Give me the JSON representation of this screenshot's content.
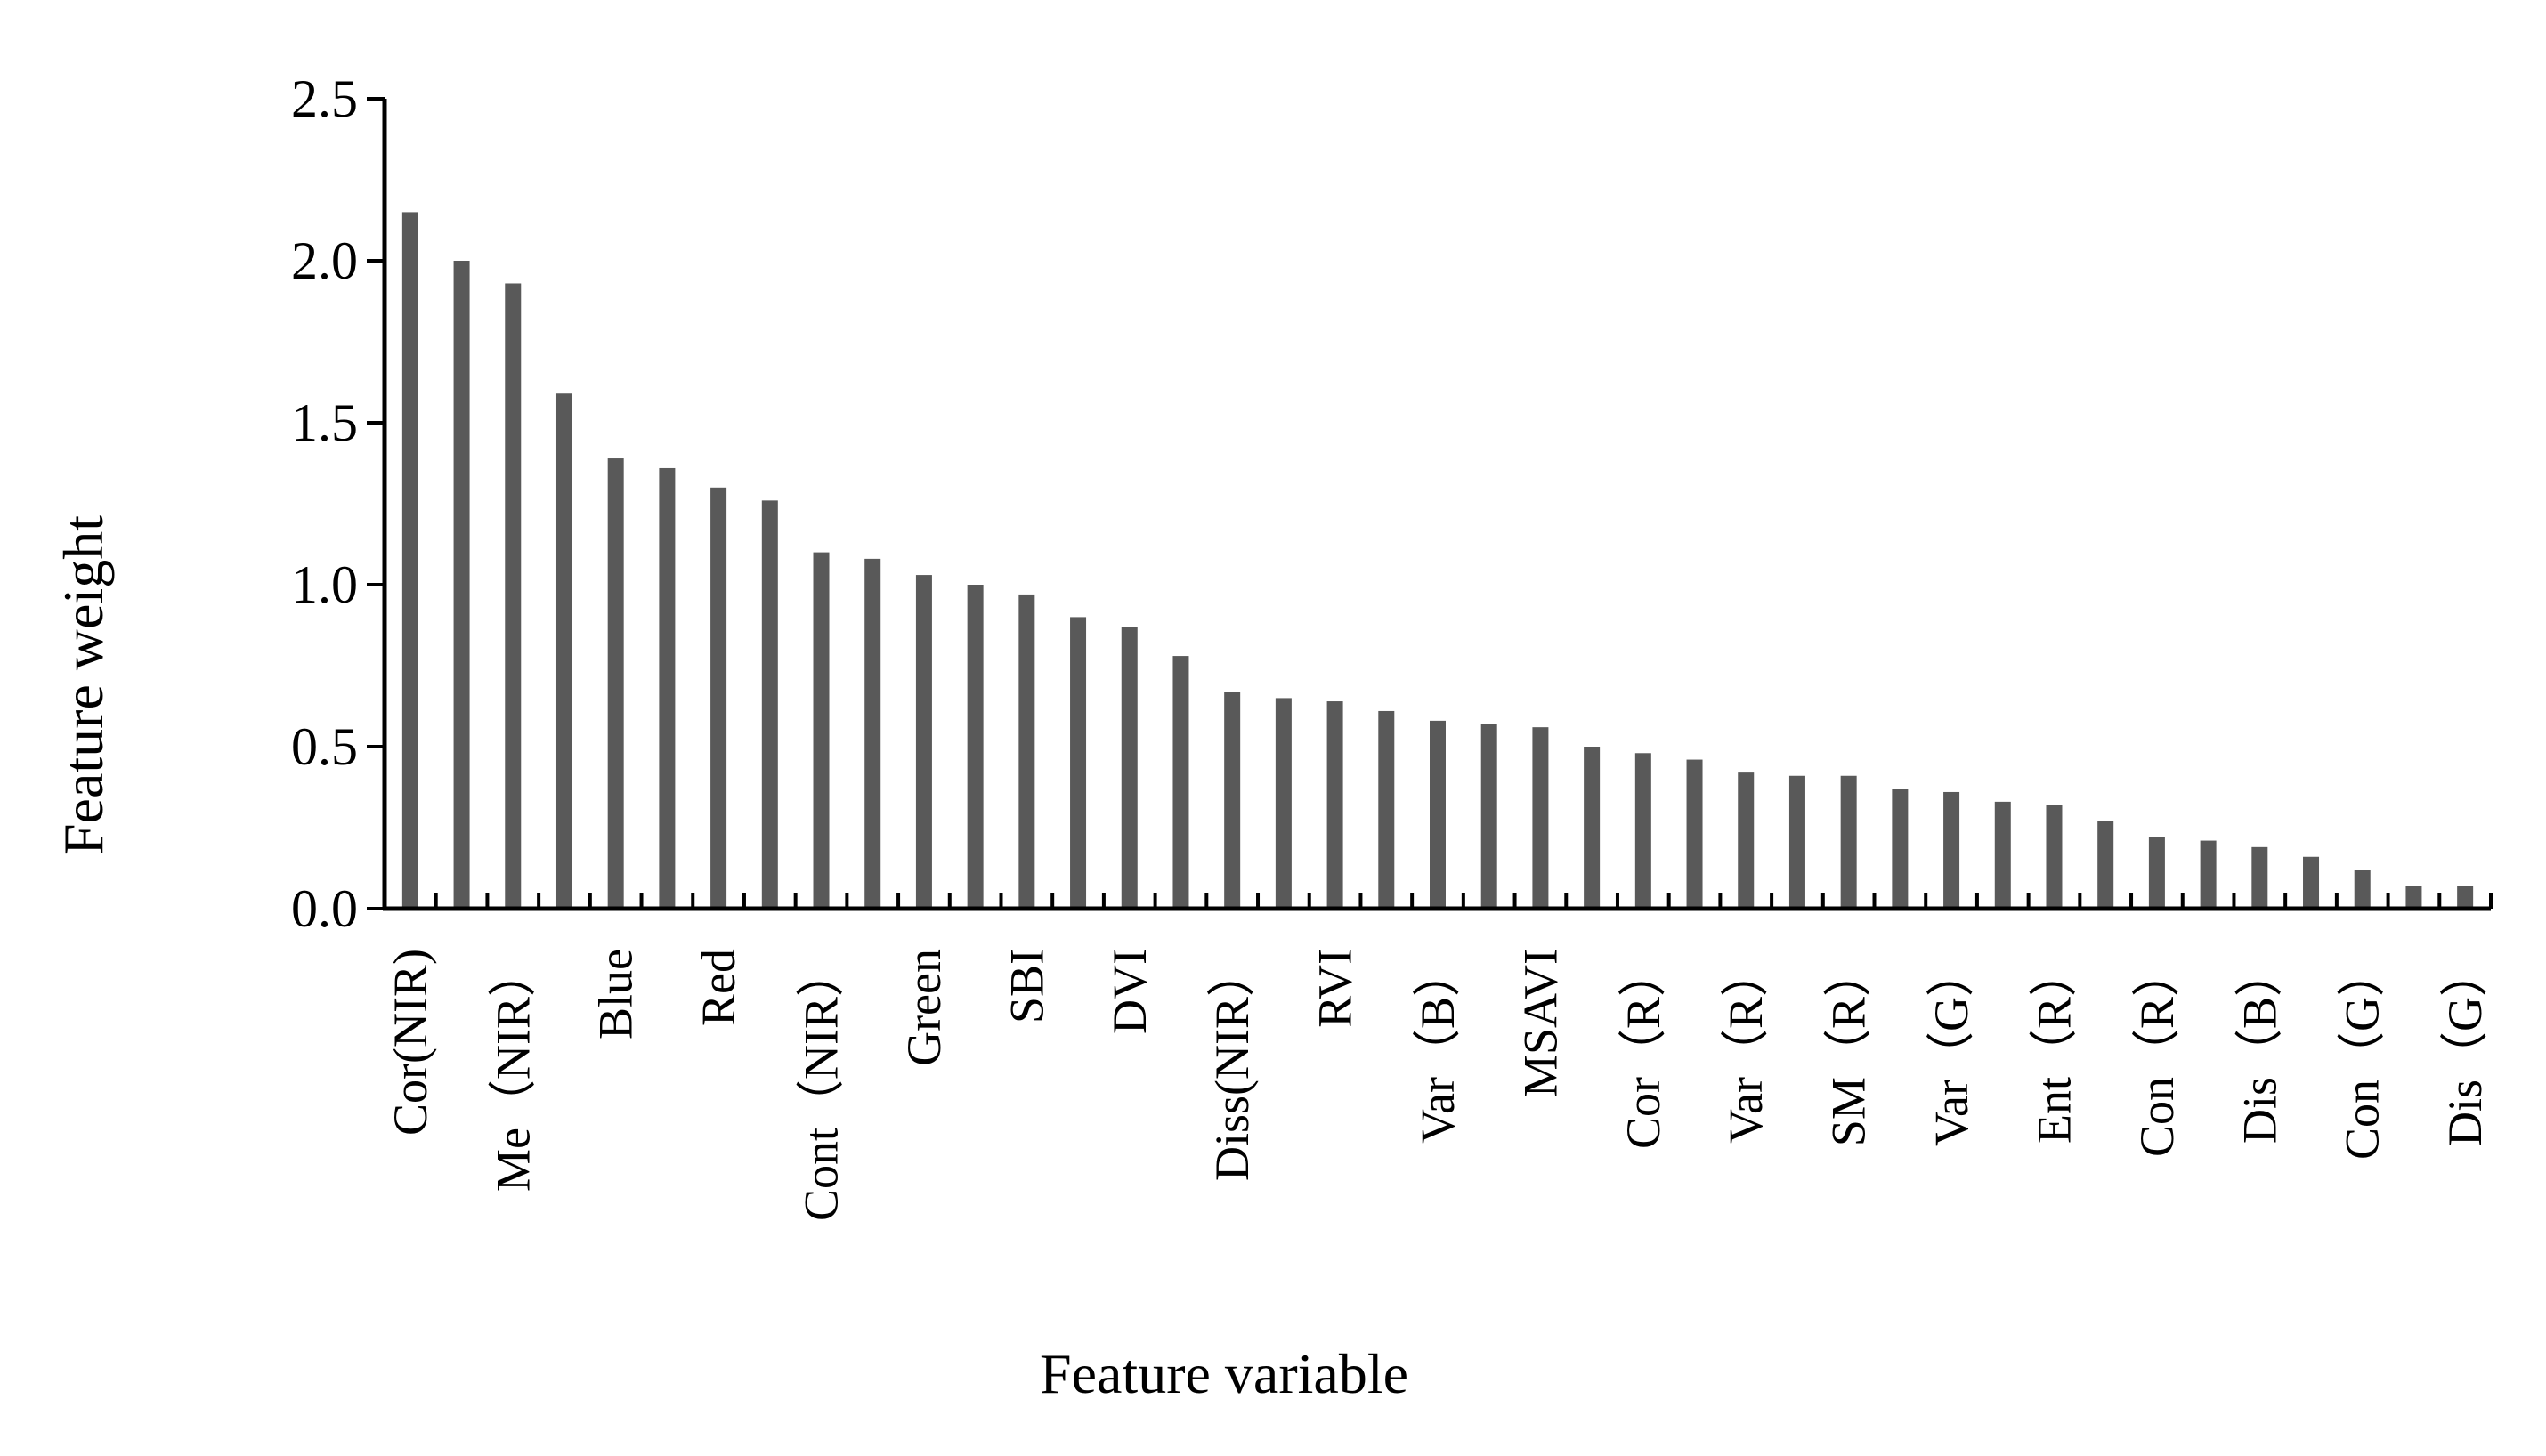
{
  "chart_data": {
    "type": "bar",
    "title": "",
    "xlabel": "Feature variable",
    "ylabel": "Feature weight",
    "ylim": [
      0,
      2.5
    ],
    "yticks": [
      "0.0",
      "0.5",
      "1.0",
      "1.5",
      "2.0",
      "2.5"
    ],
    "bar_color": "#595959",
    "categories": [
      "Cor(NIR)",
      "",
      "Me（NIR）",
      "",
      "Blue",
      "",
      "Red",
      "",
      "Cont（NIR）",
      "",
      "Green",
      "",
      "SBI",
      "",
      "DVI",
      "",
      "Diss(NIR）",
      "",
      "RVI",
      "",
      "Var（B）",
      "",
      "MSAVI",
      "",
      "Cor（R）",
      "",
      "Var（R）",
      "",
      "SM（R）",
      "",
      "Var（G）",
      "",
      "Ent（R）",
      "",
      "Con（R）",
      "",
      "Dis（B）",
      "",
      "Con（G）",
      "",
      "Dis（G）"
    ],
    "values": [
      2.15,
      2.0,
      1.93,
      1.59,
      1.39,
      1.36,
      1.3,
      1.26,
      1.1,
      1.08,
      1.03,
      1.0,
      0.97,
      0.9,
      0.87,
      0.78,
      0.67,
      0.65,
      0.64,
      0.61,
      0.58,
      0.57,
      0.56,
      0.5,
      0.48,
      0.46,
      0.42,
      0.41,
      0.41,
      0.37,
      0.36,
      0.33,
      0.32,
      0.27,
      0.22,
      0.21,
      0.19,
      0.16,
      0.12,
      0.07,
      0.07
    ],
    "grid": false,
    "legend": "none"
  }
}
